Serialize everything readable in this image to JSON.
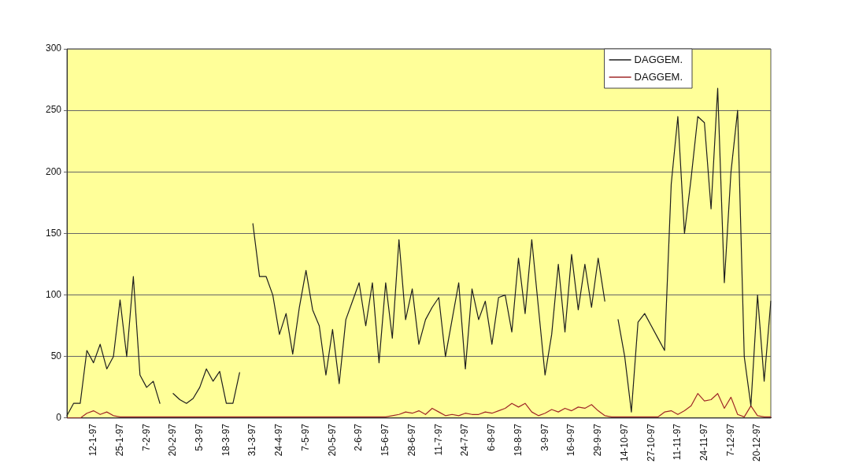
{
  "chart_data": {
    "type": "line",
    "categories": [
      null,
      null,
      null,
      null,
      "12-1-97",
      null,
      null,
      null,
      "25-1-97",
      null,
      null,
      null,
      "7-2-97",
      null,
      null,
      null,
      "20-2-97",
      null,
      null,
      null,
      "5-3-97",
      null,
      null,
      null,
      "18-3-97",
      null,
      null,
      null,
      "31-3-97",
      null,
      null,
      null,
      "24-4-97",
      null,
      null,
      null,
      "7-5-97",
      null,
      null,
      null,
      "20-5-97",
      null,
      null,
      null,
      "2-6-97",
      null,
      null,
      null,
      "15-6-97",
      null,
      null,
      null,
      "28-6-97",
      null,
      null,
      null,
      "11-7-97",
      null,
      null,
      null,
      "24-7-97",
      null,
      null,
      null,
      "6-8-97",
      null,
      null,
      null,
      "19-8-97",
      null,
      null,
      null,
      "3-9-97",
      null,
      null,
      null,
      "16-9-97",
      null,
      null,
      null,
      "29-9-97",
      null,
      null,
      null,
      "14-10-97",
      null,
      null,
      null,
      "27-10-97",
      null,
      null,
      null,
      "11-11-97",
      null,
      null,
      null,
      "24-11-97",
      null,
      null,
      null,
      "7-12-97",
      null,
      null,
      null,
      "20-12-97",
      null,
      null
    ],
    "series": [
      {
        "name": "DAGGEM.",
        "color": "#1e1e1e",
        "values": [
          2,
          12,
          12,
          55,
          45,
          60,
          40,
          50,
          96,
          50,
          115,
          35,
          25,
          30,
          12,
          null,
          20,
          15,
          12,
          16,
          25,
          40,
          30,
          38,
          12,
          12,
          37,
          null,
          158,
          115,
          115,
          100,
          68,
          85,
          52,
          90,
          120,
          88,
          75,
          35,
          72,
          28,
          80,
          95,
          110,
          75,
          110,
          45,
          110,
          65,
          145,
          80,
          105,
          60,
          80,
          90,
          98,
          50,
          80,
          110,
          40,
          105,
          80,
          95,
          60,
          98,
          100,
          70,
          130,
          85,
          145,
          90,
          35,
          68,
          125,
          70,
          133,
          88,
          125,
          90,
          130,
          95,
          null,
          80,
          50,
          5,
          78,
          85,
          75,
          65,
          55,
          190,
          245,
          150,
          195,
          245,
          240,
          170,
          268,
          110,
          200,
          250,
          50,
          10,
          100,
          30,
          95
        ]
      },
      {
        "name": "DAGGEM.",
        "color": "#a02828",
        "values": [
          0,
          0,
          0,
          4,
          6,
          3,
          5,
          2,
          1,
          1,
          1,
          1,
          1,
          1,
          1,
          1,
          1,
          1,
          1,
          1,
          1,
          1,
          1,
          1,
          1,
          1,
          1,
          1,
          1,
          1,
          1,
          1,
          1,
          1,
          1,
          1,
          1,
          1,
          1,
          1,
          1,
          1,
          1,
          1,
          1,
          1,
          1,
          1,
          1,
          2,
          3,
          5,
          4,
          6,
          3,
          8,
          5,
          2,
          3,
          2,
          4,
          3,
          3,
          5,
          4,
          6,
          8,
          12,
          9,
          12,
          5,
          2,
          4,
          7,
          5,
          8,
          6,
          9,
          8,
          11,
          6,
          2,
          1,
          1,
          1,
          1,
          1,
          1,
          1,
          1,
          5,
          6,
          3,
          6,
          10,
          20,
          14,
          15,
          20,
          8,
          17,
          3,
          1,
          10,
          2,
          1,
          1
        ]
      }
    ],
    "ylim": [
      0,
      300
    ],
    "yticks": [
      0,
      50,
      100,
      150,
      200,
      250,
      300
    ],
    "grid": "y",
    "legend": "top right",
    "marker": "none"
  }
}
